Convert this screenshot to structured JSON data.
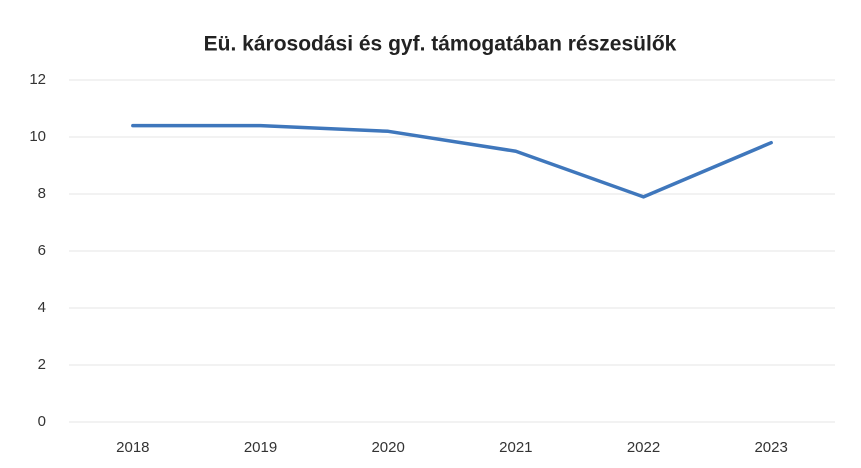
{
  "chart_data": {
    "type": "line",
    "title": "Eü. károsodási és gyf. támogatában részesülők",
    "categories": [
      "2018",
      "2019",
      "2020",
      "2021",
      "2022",
      "2023"
    ],
    "series": [
      {
        "color": "#3f77bc",
        "values": [
          10.4,
          10.4,
          10.2,
          9.5,
          7.9,
          9.8
        ]
      }
    ],
    "ylim": [
      0,
      12
    ],
    "yticks": [
      0,
      2,
      4,
      6,
      8,
      10,
      12
    ],
    "grid": true
  }
}
